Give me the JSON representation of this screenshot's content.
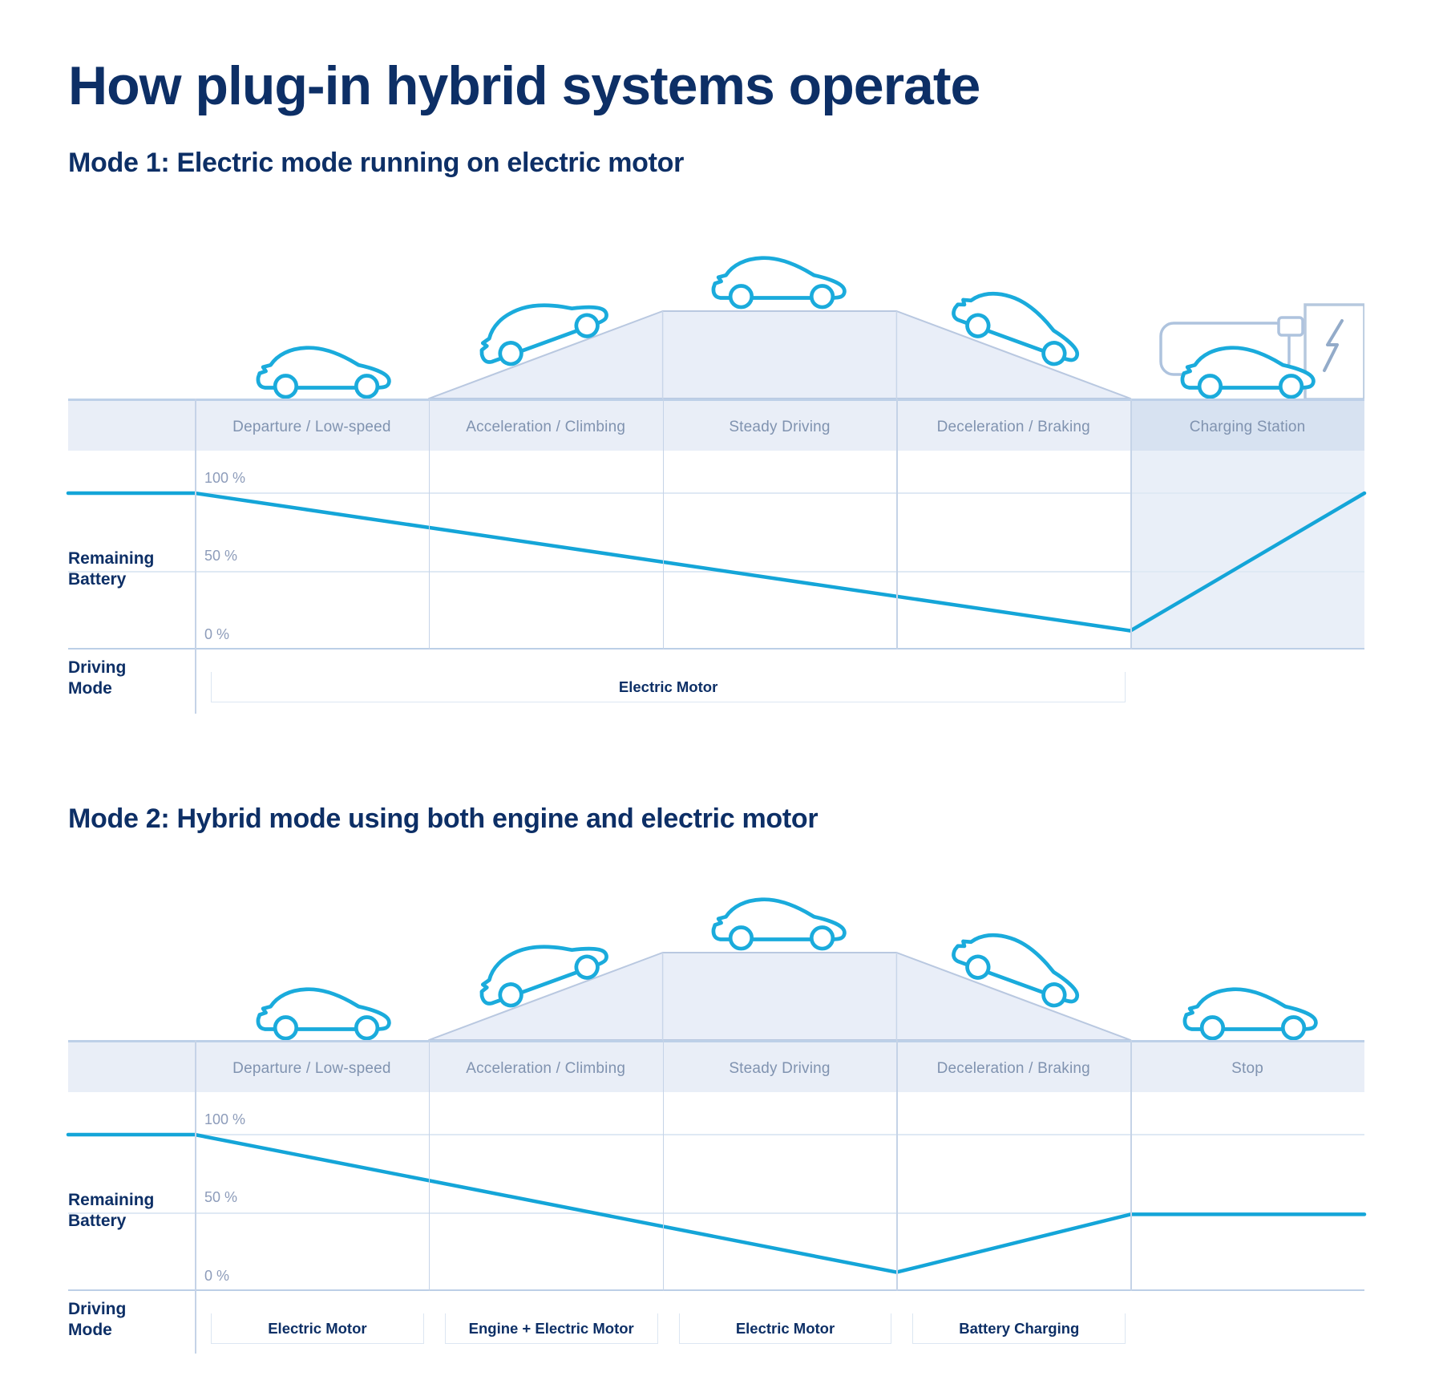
{
  "title": "How plug-in hybrid systems operate",
  "ylabel_lines": [
    "Remaining",
    "Battery"
  ],
  "driving_label_lines": [
    "Driving",
    "Mode"
  ],
  "chart_data": [
    {
      "type": "line",
      "title": "Mode 1: Electric mode running on electric motor",
      "phases": [
        "Departure / Low-speed",
        "Acceleration / Climbing",
        "Steady Driving",
        "Deceleration / Braking",
        "Charging Station"
      ],
      "ylabel": "Remaining Battery",
      "yticks": [
        "100 %",
        "50 %",
        "0 %"
      ],
      "ylim": [
        0,
        100
      ],
      "battery_curve_pct": [
        [
          "figure-left",
          100
        ],
        [
          "col0-start",
          100
        ],
        [
          "col4-start",
          12
        ],
        [
          "figure-right",
          100
        ]
      ],
      "driving_modes": [
        {
          "label": "Electric Motor",
          "start_col": 0,
          "end_col": 3
        }
      ],
      "last_column_highlighted": true,
      "charging_station": true
    },
    {
      "type": "line",
      "title": "Mode 2: Hybrid mode using both engine and electric motor",
      "phases": [
        "Departure / Low-speed",
        "Acceleration / Climbing",
        "Steady Driving",
        "Deceleration / Braking",
        "Stop"
      ],
      "ylabel": "Remaining Battery",
      "yticks": [
        "100 %",
        "50 %",
        "0 %"
      ],
      "ylim": [
        0,
        100
      ],
      "battery_curve_pct": [
        [
          "figure-left",
          100
        ],
        [
          "col0-start",
          100
        ],
        [
          "col3-start",
          12
        ],
        [
          "col4-start",
          49
        ],
        [
          "figure-right",
          49
        ]
      ],
      "driving_modes": [
        {
          "label": "Electric Motor",
          "start_col": 0,
          "end_col": 0
        },
        {
          "label": "Engine + Electric Motor",
          "start_col": 1,
          "end_col": 1
        },
        {
          "label": "Electric Motor",
          "start_col": 2,
          "end_col": 2
        },
        {
          "label": "Battery Charging",
          "start_col": 3,
          "end_col": 3
        }
      ],
      "last_column_highlighted": false,
      "charging_station": false
    }
  ],
  "colors": {
    "navy": "#0d2f66",
    "battery_line_cyan": "#14a5d8",
    "car_outline_cyan": "#1aabdc",
    "band_fill": "#e9eef7",
    "band_highlight": "#d7e2f1",
    "band_label": "#8093b0",
    "hill_fill": "#e9eef8",
    "column_tint": "#e9eff8"
  }
}
